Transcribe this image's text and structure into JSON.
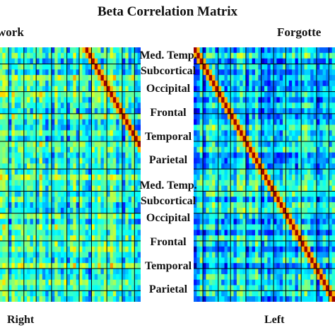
{
  "title": "Beta Correlation Matrix",
  "panels": {
    "left_title": "work",
    "right_title": "Forgotte",
    "left_footer": "Right",
    "right_footer": "Left"
  },
  "regions": [
    "Med. Temp.",
    "Subcortical",
    "Occipital",
    "Frontal",
    "Temporal",
    "Parietal",
    "Med. Temp.",
    "Subcortical",
    "Occipital",
    "Frontal",
    "Temporal",
    "Parietal"
  ],
  "chart_data": [
    {
      "type": "heatmap",
      "title": "work",
      "colormap": "jet",
      "grid_lines": "black",
      "diagonal_high": true,
      "footer_label": "Right"
    },
    {
      "type": "heatmap",
      "title": "Forgotte",
      "colormap": "jet",
      "grid_lines": "black",
      "diagonal_high": true,
      "footer_label": "Left"
    }
  ]
}
